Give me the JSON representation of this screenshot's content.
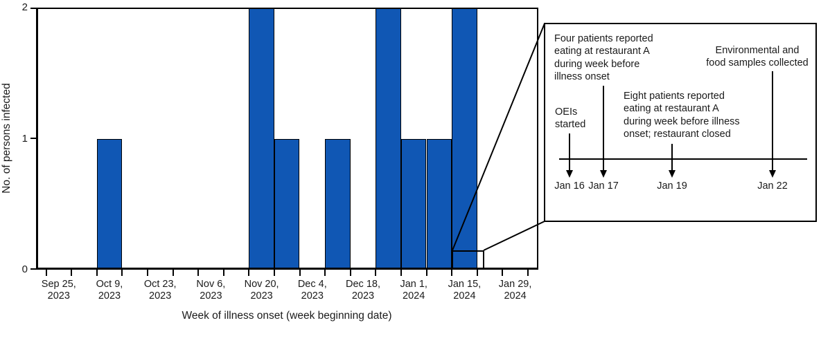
{
  "figure": {
    "background": "#ffffff",
    "line_color": "#000000",
    "text_color": "#1a1a1a"
  },
  "chart_data": {
    "type": "bar",
    "title": "",
    "xlabel": "Week of illness onset (week beginning date)",
    "ylabel": "No. of persons infected",
    "ylim": [
      0,
      2
    ],
    "yticks": [
      "0",
      "1",
      "2"
    ],
    "bar_color": "#1057B4",
    "grid": "off",
    "x_tick_labels": [
      {
        "line1": "Sep 25,",
        "line2": "2023"
      },
      {
        "line1": "Oct 9,",
        "line2": "2023"
      },
      {
        "line1": "Oct 23,",
        "line2": "2023"
      },
      {
        "line1": "Nov 6,",
        "line2": "2023"
      },
      {
        "line1": "Nov 20,",
        "line2": "2023"
      },
      {
        "line1": "Dec 4,",
        "line2": "2023"
      },
      {
        "line1": "Dec 18,",
        "line2": "2023"
      },
      {
        "line1": "Jan 1,",
        "line2": "2024"
      },
      {
        "line1": "Jan 15,",
        "line2": "2024"
      },
      {
        "line1": "Jan 29,",
        "line2": "2024"
      }
    ],
    "weeks": [
      {
        "week_beginning": "Sep 25, 2023",
        "cases": 0
      },
      {
        "week_beginning": "Oct 2, 2023",
        "cases": 0
      },
      {
        "week_beginning": "Oct 9, 2023",
        "cases": 1
      },
      {
        "week_beginning": "Oct 16, 2023",
        "cases": 0
      },
      {
        "week_beginning": "Oct 23, 2023",
        "cases": 0
      },
      {
        "week_beginning": "Oct 30, 2023",
        "cases": 0
      },
      {
        "week_beginning": "Nov 6, 2023",
        "cases": 0
      },
      {
        "week_beginning": "Nov 13, 2023",
        "cases": 0
      },
      {
        "week_beginning": "Nov 20, 2023",
        "cases": 2
      },
      {
        "week_beginning": "Nov 27, 2023",
        "cases": 1
      },
      {
        "week_beginning": "Dec 4, 2023",
        "cases": 0
      },
      {
        "week_beginning": "Dec 11, 2023",
        "cases": 1
      },
      {
        "week_beginning": "Dec 18, 2023",
        "cases": 0
      },
      {
        "week_beginning": "Dec 25, 2023",
        "cases": 2
      },
      {
        "week_beginning": "Jan 1, 2024",
        "cases": 1
      },
      {
        "week_beginning": "Jan 8, 2024",
        "cases": 1
      },
      {
        "week_beginning": "Jan 15, 2024",
        "cases": 2
      },
      {
        "week_beginning": "Jan 22, 2024",
        "cases": 0
      },
      {
        "week_beginning": "Jan 29, 2024",
        "cases": 0
      }
    ],
    "inset": {
      "timeline_events": [
        {
          "id": "jan16",
          "date": "Jan 16",
          "annotation": "OEIs\nstarted"
        },
        {
          "id": "jan17",
          "date": "Jan 17",
          "annotation": "Four patients reported\neating at restaurant A\nduring week before\nillness onset"
        },
        {
          "id": "jan19",
          "date": "Jan 19",
          "annotation": "Eight patients reported\neating at restaurant A\nduring week before illness\nonset; restaurant closed"
        },
        {
          "id": "jan22",
          "date": "Jan 22",
          "annotation": "Environmental and\nfood samples collected"
        }
      ]
    }
  }
}
